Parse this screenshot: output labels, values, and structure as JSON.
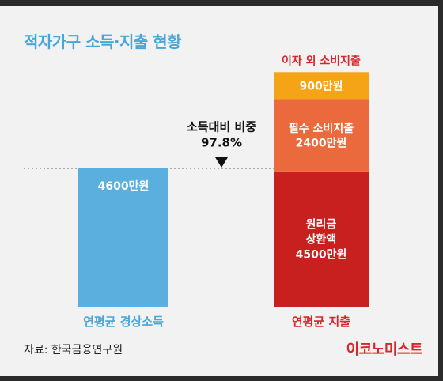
{
  "title": "적자가구 소득·지출 현황",
  "source": "자료: 한국금융연구원",
  "logo": "이코노미스트",
  "colors": {
    "income": "#5aafdf",
    "principal_interest": "#c8201f",
    "essential": "#ea6a3e",
    "other": "#f5a418",
    "label_blue": "#4aa6d9",
    "label_red": "#d6262b",
    "background": "#f2f2f2"
  },
  "chart_data": {
    "type": "bar",
    "unit": "만원",
    "categories": [
      "연평균 경상소득",
      "연평균 지출"
    ],
    "bars": [
      {
        "category": "연평균 경상소득",
        "segments": [
          {
            "label": "4600만원",
            "value": 4600
          }
        ]
      },
      {
        "category": "연평균 지출",
        "segments": [
          {
            "label": "원리금\n상환액\n4500만원",
            "value": 4500
          },
          {
            "label": "필수 소비지출\n2400만원",
            "value": 2400
          },
          {
            "label": "900만원",
            "value": 900
          }
        ]
      }
    ],
    "top_annotation": "이자 외 소비지출",
    "ratio_annotation": "소득대비 비중\n97.8%",
    "ratio_value": 97.8,
    "reference_line_value": 4600,
    "ylim": [
      0,
      7800
    ],
    "grid": false
  }
}
